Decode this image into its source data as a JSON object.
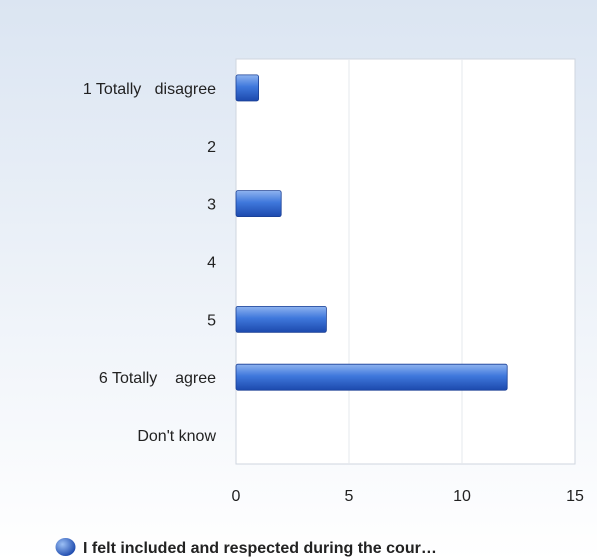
{
  "chart_data": {
    "type": "bar",
    "orientation": "horizontal",
    "categories": [
      "1 Totally   disagree",
      "2",
      "3",
      "4",
      "5",
      "6 Totally    agree",
      "Don't know"
    ],
    "series": [
      {
        "name": "I felt included and respected during the cour…",
        "values": [
          1,
          0,
          2,
          0,
          4,
          12,
          0
        ],
        "color": "#2a62c9"
      }
    ],
    "xlim": [
      0,
      15
    ],
    "xticks": [
      "0",
      "5",
      "10",
      "15"
    ],
    "grid": true,
    "legend_position": "bottom"
  }
}
